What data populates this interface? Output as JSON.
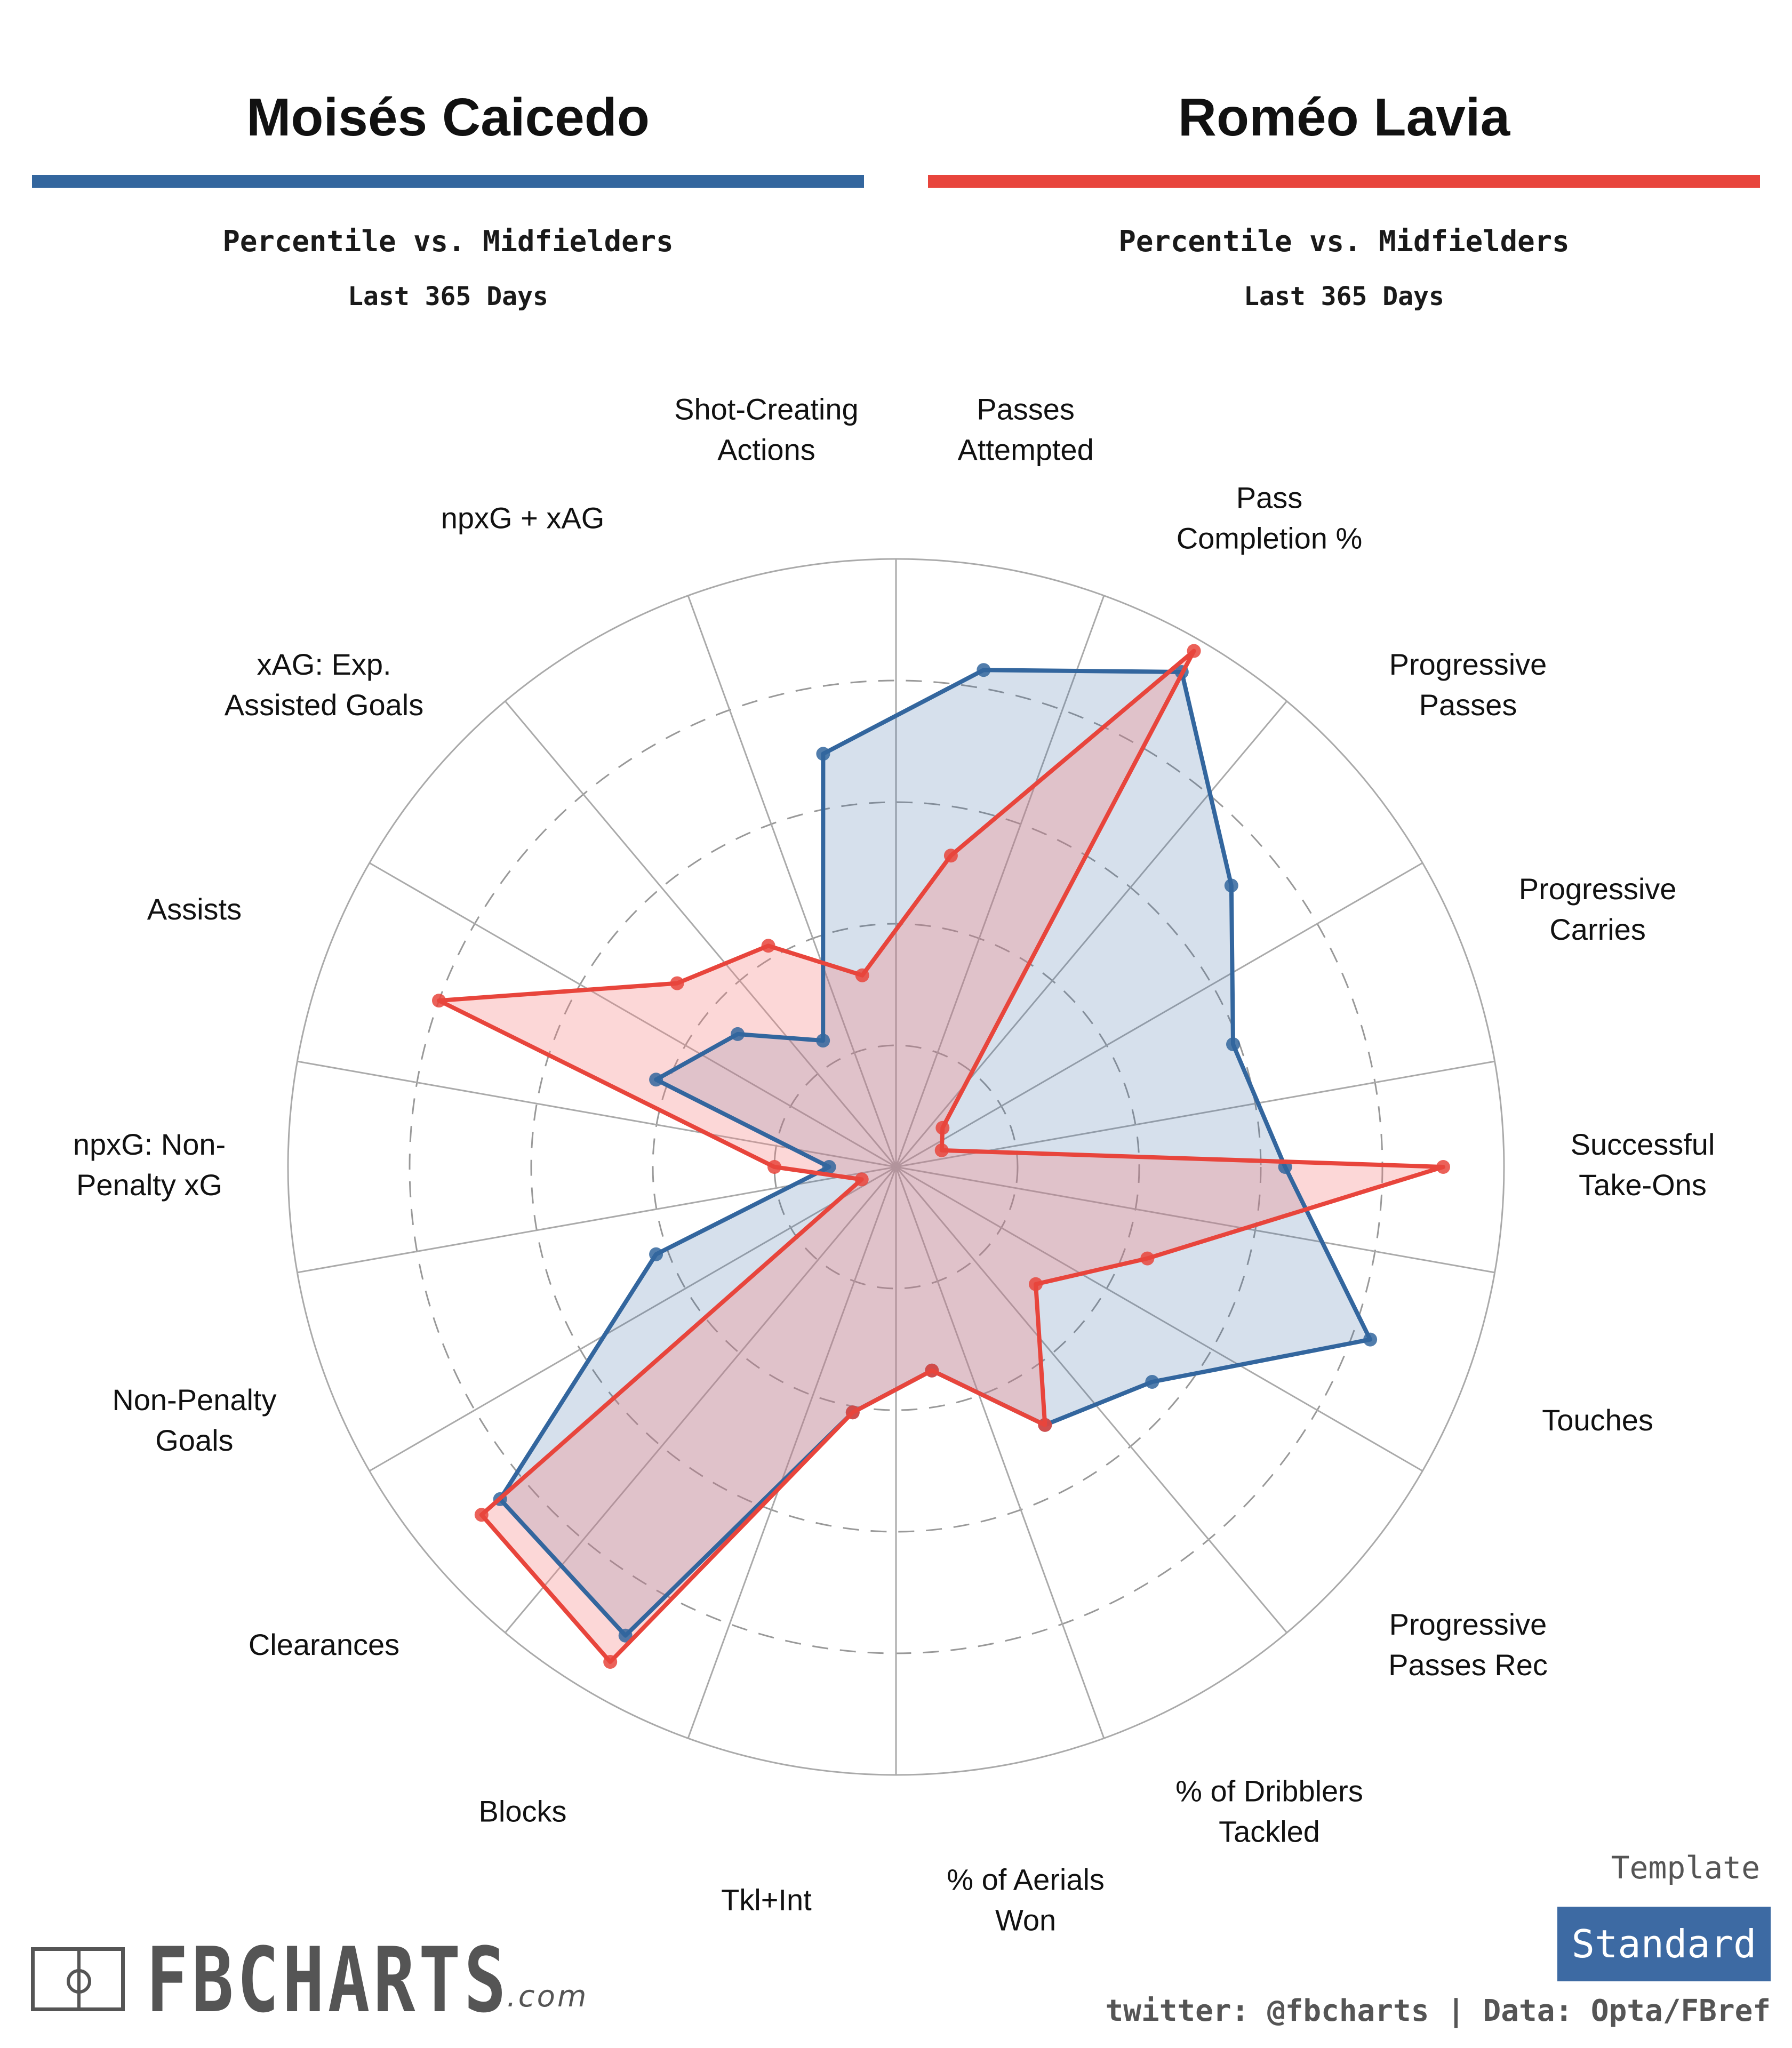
{
  "players": [
    {
      "name": "Moisés Caicedo",
      "color": "#33669e",
      "fill": "rgba(51,102,158,0.20)",
      "subtitle_line1": "Percentile vs. Midfielders",
      "subtitle_line2": "Last 365 Days"
    },
    {
      "name": "Roméo Lavia",
      "color": "#e8453c",
      "fill": "rgba(246,131,131,0.32)",
      "subtitle_line1": "Percentile vs. Midfielders",
      "subtitle_line2": "Last 365 Days"
    }
  ],
  "chart_data": {
    "type": "radar",
    "rlim": [
      0,
      100
    ],
    "grid": "dashed circles at 20, 40, 60, 80; solid outer ring at 100",
    "categories": [
      [
        "Passes",
        "Attempted"
      ],
      [
        "Pass",
        "Completion %"
      ],
      [
        "Progressive",
        "Passes"
      ],
      [
        "Progressive",
        "Carries"
      ],
      [
        "Successful",
        "Take-Ons"
      ],
      [
        "Touches"
      ],
      [
        "Progressive",
        "Passes Rec"
      ],
      [
        "% of Dribblers",
        "Tackled"
      ],
      [
        "% of Aerials",
        "Won"
      ],
      [
        "Tkl+Int"
      ],
      [
        "Blocks"
      ],
      [
        "Clearances"
      ],
      [
        "Non-Penalty",
        "Goals"
      ],
      [
        "npxG: Non-",
        "Penalty xG"
      ],
      [
        "Assists"
      ],
      [
        "xAG: Exp.",
        "Assisted Goals"
      ],
      [
        "npxG + xAG"
      ],
      [
        "Shot-Creating",
        "Actions"
      ]
    ],
    "series": [
      {
        "name": "Moisés Caicedo",
        "color": "#33669e",
        "values": [
          83,
          94,
          72,
          59,
          64,
          83,
          55,
          49,
          34,
          41,
          89,
          85,
          42,
          11,
          42,
          34,
          24,
          69
        ]
      },
      {
        "name": "Roméo Lavia",
        "color": "#e8453c",
        "values": [
          52,
          98,
          10,
          8,
          90,
          44,
          30,
          49,
          34,
          41,
          94,
          89,
          6,
          20,
          80,
          47,
          42,
          32
        ]
      }
    ]
  },
  "branding": {
    "logo_word": "FBCHARTS",
    "logo_suffix": ".com"
  },
  "template": {
    "label": "Template",
    "value": "Standard",
    "badge_color": "#3d6aa3"
  },
  "credits": "twitter: @fbcharts | Data: Opta/FBref"
}
